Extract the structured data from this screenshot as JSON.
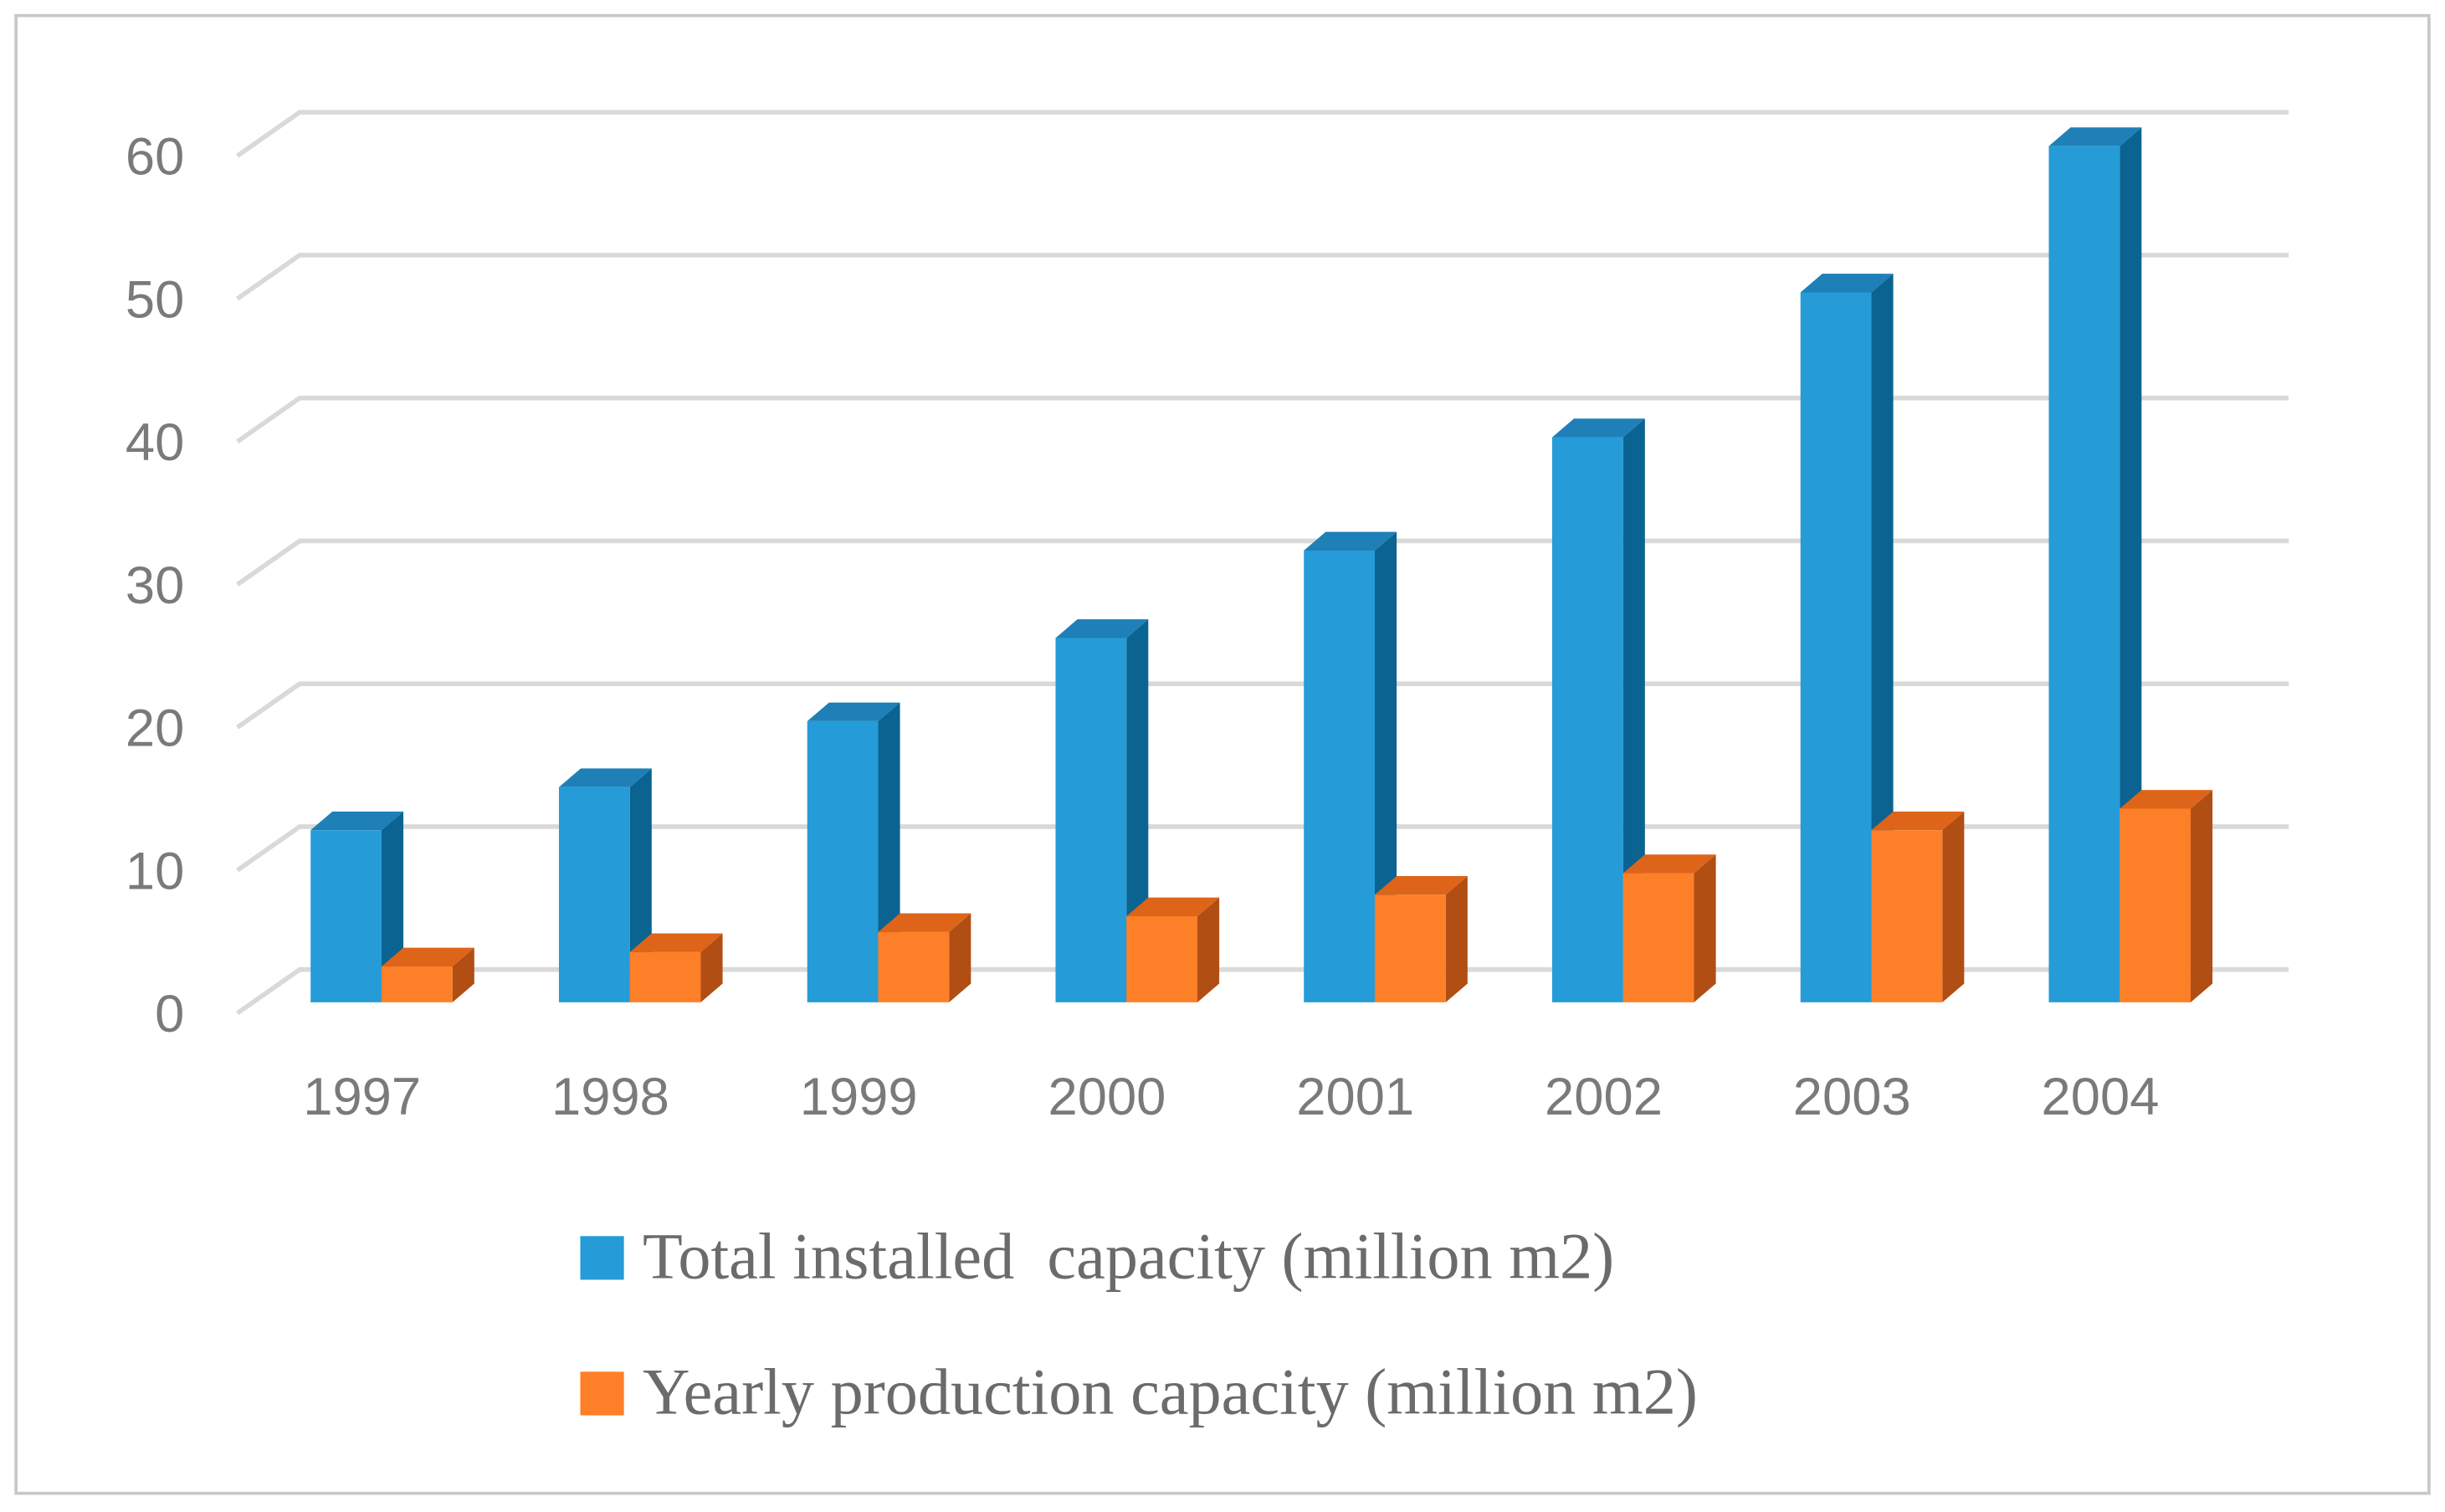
{
  "chart_data": {
    "type": "bar",
    "style": "3d-clustered-column",
    "title": "",
    "xlabel": "",
    "ylabel": "",
    "categories": [
      "1997",
      "1998",
      "1999",
      "2000",
      "2001",
      "2002",
      "2003",
      "2004"
    ],
    "series": [
      {
        "name": "Total installed  capacity (million m2)",
        "color": "#259BD8",
        "values": [
          12,
          15,
          19.6,
          25.4,
          31.5,
          39.4,
          49.5,
          59.7
        ]
      },
      {
        "name": "Yearly production capacity (million m2)",
        "color": "#FD7F27",
        "values": [
          2.5,
          3.5,
          4.9,
          6,
          7.5,
          9,
          12,
          13.5
        ]
      }
    ],
    "yticks": [
      "0",
      "10",
      "20",
      "30",
      "40",
      "50",
      "60"
    ],
    "ylim": [
      0,
      60
    ],
    "grid": true,
    "legend": "bottom"
  }
}
